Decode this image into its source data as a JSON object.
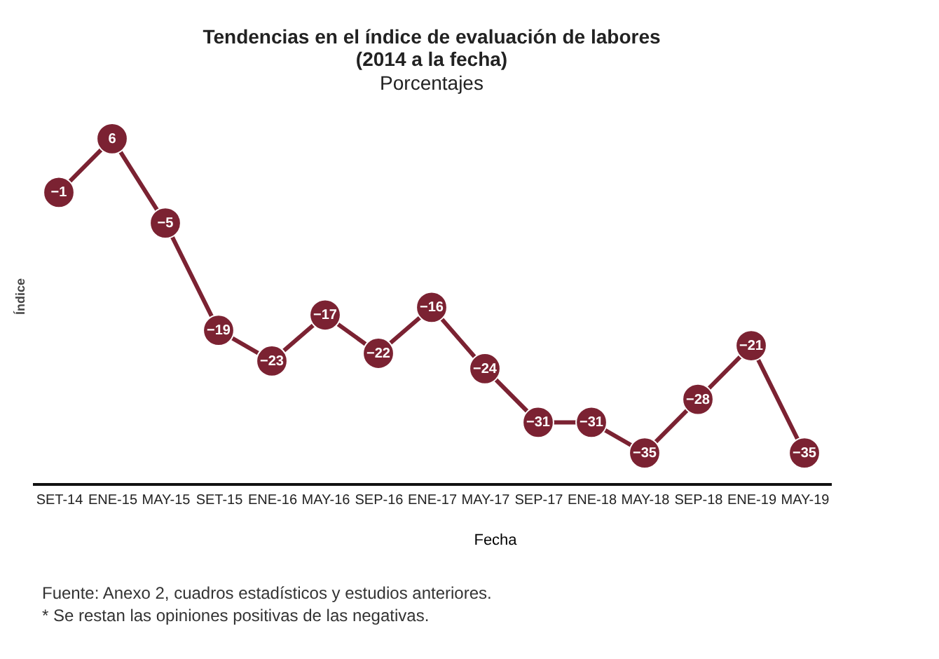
{
  "chart_data": {
    "type": "line",
    "title": "Tendencias en el índice de evaluación de labores\n(2014 a la fecha)",
    "subtitle": "Porcentajes",
    "xlabel": "Fecha",
    "ylabel": "Índice",
    "categories": [
      "SET-14",
      "ENE-15",
      "MAY-15",
      "SET-15",
      "ENE-16",
      "MAY-16",
      "SEP-16",
      "ENE-17",
      "MAY-17",
      "SEP-17",
      "ENE-18",
      "MAY-18",
      "SEP-18",
      "ENE-19",
      "MAY-19"
    ],
    "values": [
      -1,
      6,
      -5,
      -19,
      -23,
      -17,
      -22,
      -16,
      -24,
      -31,
      -31,
      -35,
      -28,
      -21,
      -35
    ],
    "color": "#7b2232",
    "marker": "circle",
    "data_labels": true,
    "annotations": [
      "Fuente: Anexo 2, cuadros estadísticos y estudios anteriores.",
      "* Se restan las opiniones positivas de las negativas."
    ]
  }
}
